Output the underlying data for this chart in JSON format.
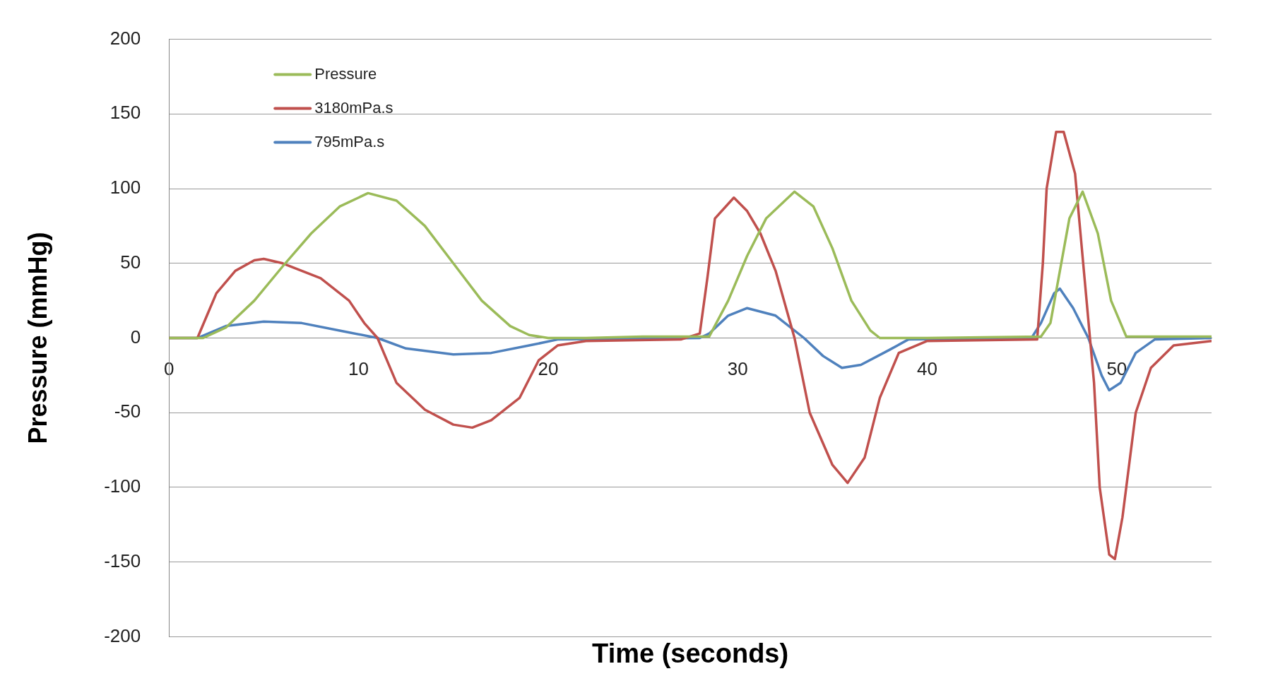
{
  "chart_data": {
    "type": "line",
    "xlabel": "Time (seconds)",
    "ylabel": "Pressure (mmHg)",
    "xlim": [
      0,
      55
    ],
    "xticks": [
      0,
      10,
      20,
      30,
      40,
      50
    ],
    "ylim": [
      -200,
      200
    ],
    "yticks": [
      -200,
      -150,
      -100,
      -50,
      0,
      50,
      100,
      150,
      200
    ],
    "grid": "y",
    "legend": "top left",
    "marker": "none",
    "line_style": "solid",
    "series": [
      {
        "name": "Pressure",
        "color": "#9bbb59",
        "x": [
          0,
          1.8,
          3,
          4.5,
          6,
          7.5,
          9,
          10.5,
          12,
          13.5,
          15,
          16.5,
          18,
          19,
          20,
          22,
          25,
          28.5,
          29.5,
          30.5,
          31.5,
          33,
          34,
          35,
          36,
          37,
          37.5,
          40,
          46,
          46.5,
          47,
          47.5,
          48.2,
          49,
          49.7,
          50.5,
          55
        ],
        "values": [
          0,
          0,
          7,
          25,
          48,
          70,
          88,
          97,
          92,
          75,
          50,
          25,
          8,
          2,
          0,
          0,
          1,
          1,
          25,
          55,
          80,
          98,
          88,
          60,
          25,
          5,
          0,
          0,
          1,
          10,
          45,
          80,
          98,
          70,
          25,
          1,
          1
        ]
      },
      {
        "name": "3180mPa.s",
        "color": "#c0504d",
        "x": [
          0,
          1.5,
          2,
          2.5,
          3.5,
          4.5,
          5,
          6,
          8,
          9.5,
          10.3,
          11,
          12,
          13.5,
          15,
          16,
          17,
          18.5,
          19.5,
          20.5,
          22,
          27,
          28,
          28.4,
          28.8,
          29.8,
          30.5,
          31.2,
          32,
          33,
          33.8,
          35,
          35.8,
          36.7,
          37.5,
          38.5,
          40,
          45.8,
          46.1,
          46.3,
          46.8,
          47.2,
          47.8,
          48.3,
          48.8,
          49.1,
          49.6,
          49.9,
          50.3,
          51,
          51.8,
          53,
          55
        ],
        "values": [
          0,
          0,
          15,
          30,
          45,
          52,
          53,
          50,
          40,
          25,
          10,
          0,
          -30,
          -48,
          -58,
          -60,
          -55,
          -40,
          -15,
          -5,
          -2,
          -1,
          3,
          40,
          80,
          94,
          85,
          70,
          45,
          0,
          -50,
          -85,
          -97,
          -80,
          -40,
          -10,
          -2,
          -1,
          50,
          100,
          138,
          138,
          110,
          40,
          -30,
          -100,
          -145,
          -148,
          -120,
          -50,
          -20,
          -5,
          -2
        ]
      },
      {
        "name": "795mPa.s",
        "color": "#4f81bd",
        "x": [
          0,
          1.5,
          3,
          5,
          7,
          9,
          11,
          12.5,
          15,
          17,
          19,
          20.5,
          28,
          28.5,
          29.5,
          30.5,
          32,
          33.5,
          34.5,
          35.5,
          36.5,
          38,
          39,
          45.5,
          46,
          46.7,
          47,
          47.7,
          48.5,
          49.2,
          49.6,
          50.2,
          51,
          52,
          55
        ],
        "values": [
          0,
          0,
          8,
          11,
          10,
          5,
          0,
          -7,
          -11,
          -10,
          -5,
          -1,
          0,
          3,
          15,
          20,
          15,
          0,
          -12,
          -20,
          -18,
          -8,
          -1,
          0,
          10,
          30,
          33,
          20,
          0,
          -25,
          -35,
          -30,
          -10,
          -1,
          0
        ]
      }
    ]
  }
}
